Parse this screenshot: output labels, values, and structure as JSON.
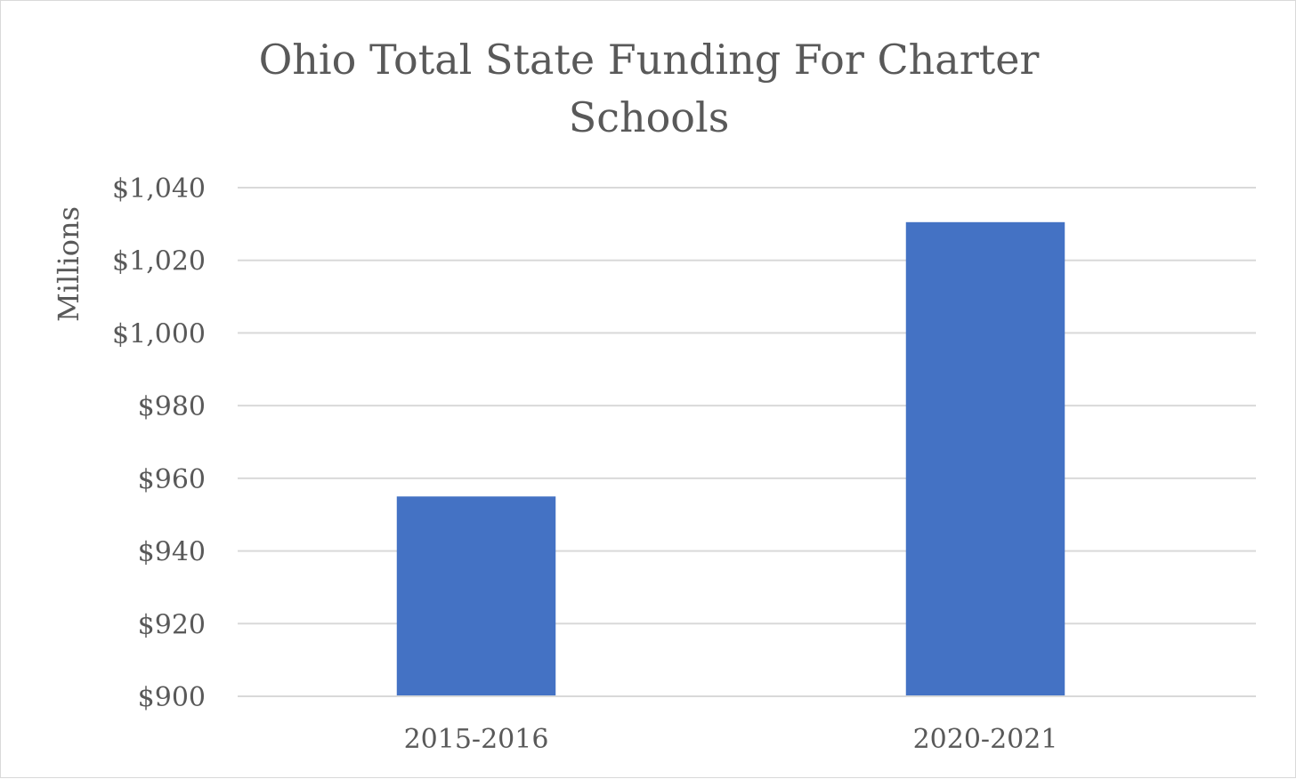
{
  "chart_data": {
    "type": "bar",
    "title_lines": [
      "Ohio Total State Funding For Charter",
      "Schools"
    ],
    "xlabel": "",
    "ylabel": "Millions",
    "categories": [
      "2015-2016",
      "2020-2021"
    ],
    "series": [
      {
        "name": "Total State Funding",
        "values": [
          955,
          1030.5
        ],
        "color": "#4472c4"
      }
    ],
    "ylim": [
      900,
      1040
    ],
    "yticks": [
      900,
      920,
      940,
      960,
      980,
      1000,
      1020,
      1040
    ],
    "ytick_labels": [
      "$900",
      "$920",
      "$940",
      "$960",
      "$980",
      "$1,000",
      "$1,020",
      "$1,040"
    ],
    "grid": true,
    "legend": "none"
  }
}
